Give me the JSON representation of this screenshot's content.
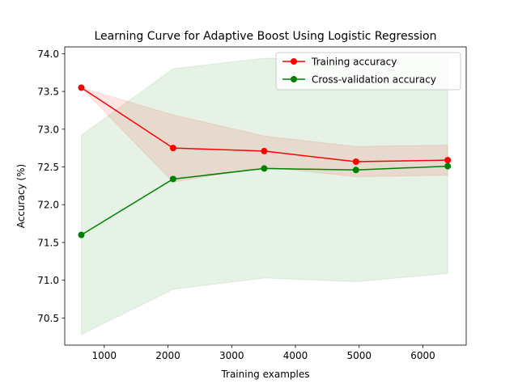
{
  "chart_data": {
    "type": "line",
    "title": "Learning Curve for Adaptive Boost Using Logistic Regression",
    "xlabel": "Training examples",
    "ylabel": "Accuracy (%)",
    "xlim": [
      380,
      6680
    ],
    "ylim": [
      70.14,
      74.09
    ],
    "xticks": [
      1000,
      2000,
      3000,
      4000,
      5000,
      6000
    ],
    "yticks": [
      70.5,
      71.0,
      71.5,
      72.0,
      72.5,
      73.0,
      73.5,
      74.0
    ],
    "x": [
      640,
      2080,
      3510,
      4950,
      6390
    ],
    "legend_position": "top-right",
    "series": [
      {
        "name": "Training accuracy",
        "color": "#ff0000",
        "band_color": "#ff0000",
        "values": [
          73.55,
          72.75,
          72.71,
          72.57,
          72.59
        ],
        "band_upper": [
          73.55,
          73.19,
          72.91,
          72.77,
          72.79
        ],
        "band_lower": [
          73.55,
          72.3,
          72.5,
          72.37,
          72.39
        ]
      },
      {
        "name": "Cross-validation accuracy",
        "color": "#008000",
        "band_color": "#008000",
        "values": [
          71.6,
          72.34,
          72.48,
          72.46,
          72.51
        ],
        "band_upper": [
          72.92,
          73.8,
          73.94,
          73.93,
          73.94
        ],
        "band_lower": [
          70.28,
          70.88,
          71.03,
          70.98,
          71.09
        ]
      }
    ]
  }
}
